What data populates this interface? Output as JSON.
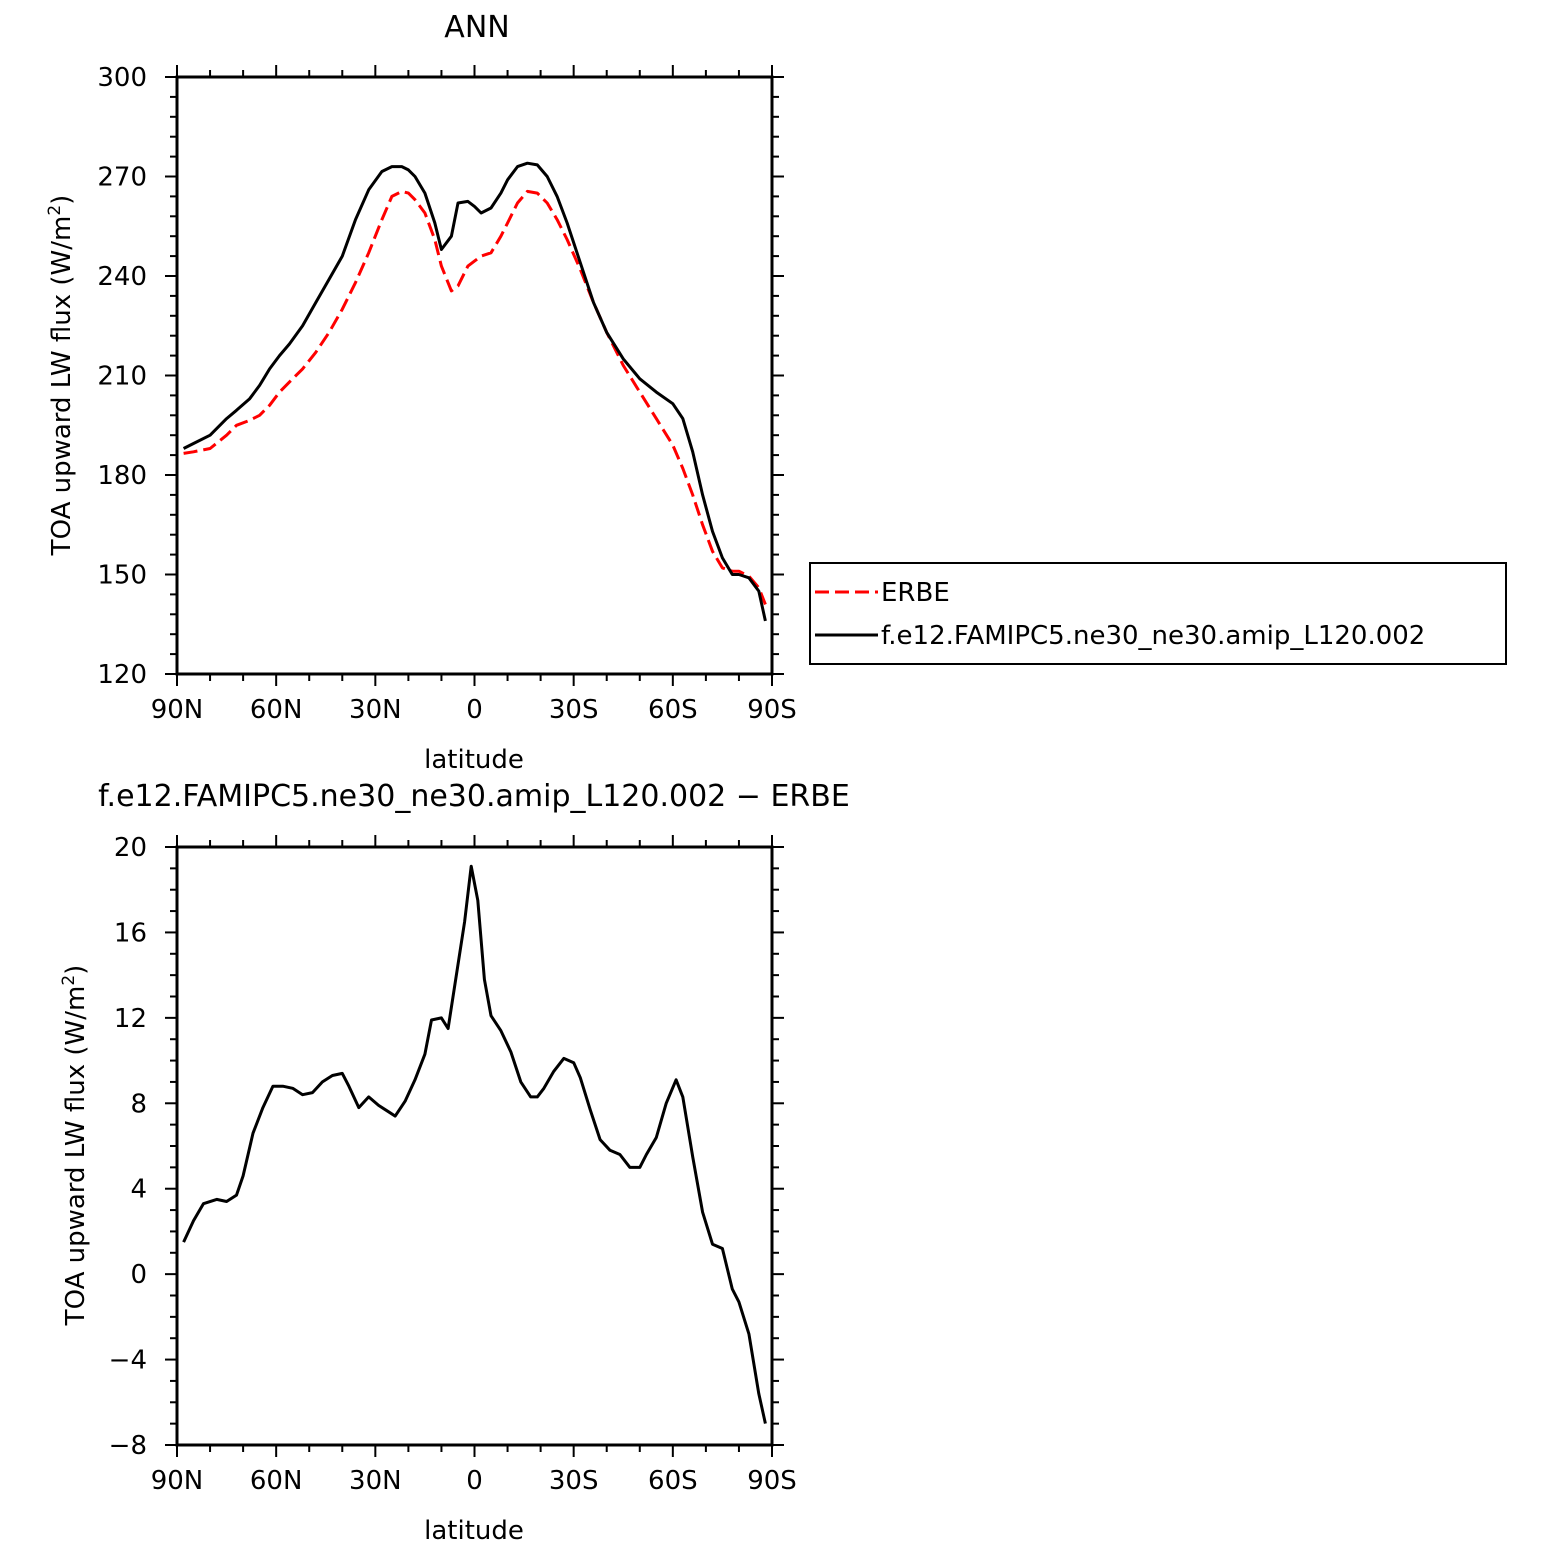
{
  "chart_data": [
    {
      "type": "line",
      "title": "ANN",
      "xlabel": "latitude",
      "ylabel_main": "TOA upward LW flux (W/m",
      "ylabel_sup": "2",
      "ylabel_close": ")",
      "xlim": [
        90,
        -90
      ],
      "ylim": [
        120,
        300
      ],
      "xticks": [
        90,
        60,
        30,
        0,
        -30,
        -60,
        -90
      ],
      "xtick_labels": [
        "90N",
        "60N",
        "30N",
        "0",
        "30S",
        "60S",
        "90S"
      ],
      "yticks": [
        120,
        150,
        180,
        210,
        240,
        270,
        300
      ],
      "ytick_labels": [
        "120",
        "150",
        "180",
        "210",
        "240",
        "270",
        "300"
      ],
      "legend_position": "right",
      "series": [
        {
          "name": "ERBE",
          "color": "#ff0000",
          "dash": "dashed",
          "x": [
            88,
            85,
            80,
            75,
            72,
            68,
            65,
            62,
            59,
            56,
            52,
            48,
            44,
            40,
            36,
            32,
            28,
            25,
            22,
            20,
            18,
            15,
            12,
            10,
            7,
            5,
            2,
            0,
            -2,
            -5,
            -8,
            -10,
            -13,
            -16,
            -19,
            -22,
            -25,
            -28,
            -32,
            -36,
            -40,
            -45,
            -50,
            -55,
            -60,
            -63,
            -66,
            -69,
            -72,
            -75,
            -78,
            -80,
            -83,
            -86,
            -88
          ],
          "y": [
            186.5,
            187,
            188,
            192,
            195,
            196.5,
            198,
            201,
            205,
            208,
            212,
            217,
            223,
            230,
            238,
            247,
            257,
            264,
            265.5,
            265,
            263,
            259,
            251,
            243,
            235.5,
            237,
            243,
            244.5,
            246,
            247,
            252,
            256,
            262,
            265.5,
            265,
            262,
            257,
            251,
            242,
            232,
            223,
            213,
            205,
            197,
            189,
            182,
            174,
            165,
            157,
            152,
            151,
            151,
            149.5,
            146,
            141
          ]
        },
        {
          "name": "f.e12.FAMIPC5.ne30_ne30.amip_L120.002",
          "color": "#000000",
          "dash": "solid",
          "x": [
            88,
            85,
            80,
            75,
            72,
            68,
            65,
            62,
            59,
            56,
            52,
            48,
            44,
            40,
            36,
            32,
            28,
            25,
            22,
            20,
            18,
            15,
            12,
            10,
            7,
            5,
            2,
            0,
            -2,
            -5,
            -8,
            -10,
            -13,
            -16,
            -19,
            -22,
            -25,
            -28,
            -32,
            -36,
            -40,
            -45,
            -50,
            -55,
            -60,
            -63,
            -66,
            -69,
            -72,
            -75,
            -78,
            -80,
            -83,
            -86,
            -88
          ],
          "y": [
            188,
            189.5,
            192,
            197,
            199.5,
            203,
            207,
            212,
            216,
            219.5,
            225,
            232,
            239,
            246,
            257,
            266,
            271.5,
            273,
            273,
            272,
            270,
            265,
            256,
            248,
            252,
            262,
            262.5,
            261,
            259,
            260.5,
            265,
            269,
            273,
            274,
            273.5,
            270,
            264,
            256,
            244,
            232,
            223,
            215,
            209,
            205,
            201.5,
            197,
            187,
            174,
            163,
            155,
            150,
            150,
            149,
            145,
            136
          ]
        }
      ]
    },
    {
      "type": "line",
      "title": "f.e12.FAMIPC5.ne30_ne30.amip_L120.002 − ERBE",
      "xlabel": "latitude",
      "ylabel_main": "TOA upward LW flux (W/m",
      "ylabel_sup": "2",
      "ylabel_close": ")",
      "xlim": [
        90,
        -90
      ],
      "ylim": [
        -8,
        20
      ],
      "xticks": [
        90,
        60,
        30,
        0,
        -30,
        -60,
        -90
      ],
      "xtick_labels": [
        "90N",
        "60N",
        "30N",
        "0",
        "30S",
        "60S",
        "90S"
      ],
      "yticks": [
        -8,
        -4,
        0,
        4,
        8,
        12,
        16,
        20
      ],
      "ytick_labels": [
        "−8",
        "−4",
        "0",
        "4",
        "8",
        "12",
        "16",
        "20"
      ],
      "series": [
        {
          "color": "#000000",
          "dash": "solid",
          "x": [
            88,
            85,
            82,
            78,
            75,
            72,
            70,
            67,
            64,
            61,
            58,
            55,
            52,
            49,
            46,
            43,
            40,
            38,
            35,
            32,
            29,
            26,
            24,
            21,
            18,
            15,
            13,
            10,
            8,
            5,
            3,
            1,
            -1,
            -3,
            -5,
            -8,
            -11,
            -14,
            -17,
            -19,
            -21,
            -24,
            -27,
            -30,
            -32,
            -35,
            -38,
            -41,
            -44,
            -47,
            -50,
            -52,
            -55,
            -58,
            -61,
            -63,
            -66,
            -69,
            -72,
            -75,
            -78,
            -80,
            -83,
            -86,
            -88
          ],
          "y": [
            1.5,
            2.5,
            3.3,
            3.5,
            3.4,
            3.7,
            4.6,
            6.6,
            7.8,
            8.8,
            8.8,
            8.7,
            8.4,
            8.5,
            9.0,
            9.3,
            9.4,
            8.8,
            7.8,
            8.3,
            7.9,
            7.6,
            7.4,
            8.1,
            9.1,
            10.3,
            11.9,
            12.0,
            11.5,
            14.5,
            16.5,
            19.1,
            17.5,
            13.8,
            12.1,
            11.4,
            10.4,
            9.0,
            8.3,
            8.3,
            8.7,
            9.5,
            10.1,
            9.9,
            9.2,
            7.7,
            6.3,
            5.8,
            5.6,
            5.0,
            5.0,
            5.6,
            6.4,
            8.0,
            9.1,
            8.3,
            5.5,
            2.9,
            1.4,
            1.2,
            -0.7,
            -1.3,
            -2.8,
            -5.6,
            -7.0
          ]
        }
      ]
    }
  ]
}
